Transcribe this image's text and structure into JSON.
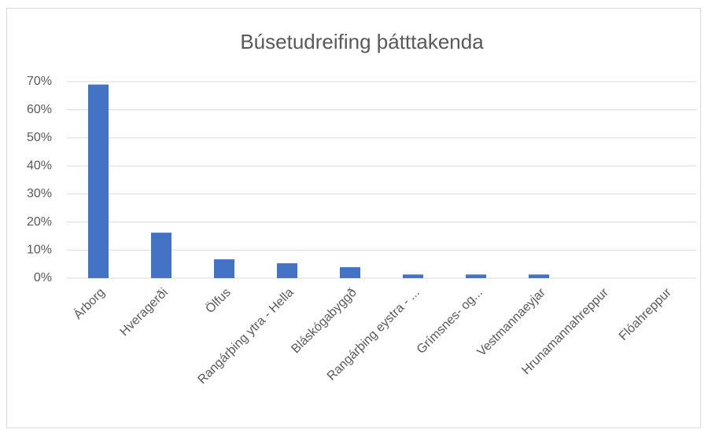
{
  "chart_data": {
    "type": "bar",
    "title": "Búsetudreifing þátttakenda",
    "categories": [
      "Árborg",
      "Hveragerði",
      "Ölfus",
      "Rangárþing ytra - Hella",
      "Bláskógabyggð",
      "Rangárþing eystra - ...",
      "Grímsnes- og...",
      "Vestmannaeyjar",
      "Hrunamannahreppur",
      "Flóahreppur"
    ],
    "values": [
      69,
      16.2,
      6.7,
      5.3,
      3.9,
      1.3,
      1.3,
      1.3,
      0,
      0
    ],
    "color": "#4472c4",
    "ylim": [
      0,
      70
    ],
    "yticks": [
      {
        "value": 0,
        "label": "0%"
      },
      {
        "value": 10,
        "label": "10%"
      },
      {
        "value": 20,
        "label": "20%"
      },
      {
        "value": 30,
        "label": "30%"
      },
      {
        "value": 40,
        "label": "40%"
      },
      {
        "value": 50,
        "label": "50%"
      },
      {
        "value": 60,
        "label": "60%"
      },
      {
        "value": 70,
        "label": "70%"
      }
    ],
    "grid": true
  }
}
